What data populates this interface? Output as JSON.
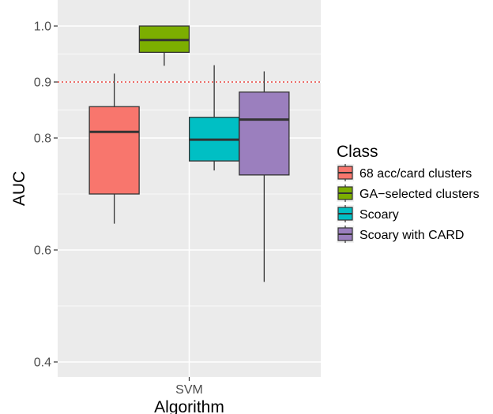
{
  "chart_data": {
    "type": "boxplot",
    "title": "",
    "xlabel": "Algorithm",
    "ylabel": "AUC",
    "categories": [
      "SVM"
    ],
    "ylim": [
      0.38,
      1.04
    ],
    "yticks": [
      0.4,
      0.6,
      0.8,
      0.9,
      1.0
    ],
    "ytick_labels": [
      "0.4",
      "0.6",
      "0.8",
      "0.9",
      "1.0"
    ],
    "minor_gridlines": [
      0.5,
      0.7,
      0.85,
      0.95
    ],
    "grid": true,
    "reference_line": {
      "y": 0.9,
      "style": "dotted",
      "color": "#e8413c"
    },
    "legend": {
      "title": "Class",
      "position": "right"
    },
    "series": [
      {
        "name": "68 acc/card clusters",
        "color": "#f8766d",
        "min": 0.647,
        "q1": 0.7,
        "median": 0.811,
        "q3": 0.856,
        "max": 0.915
      },
      {
        "name": "GA−selected clusters",
        "color": "#7cae00",
        "min": 0.929,
        "q1": 0.953,
        "median": 0.975,
        "q3": 1.0,
        "max": 1.0
      },
      {
        "name": "Scoary",
        "color": "#00bfc4",
        "min": 0.742,
        "q1": 0.759,
        "median": 0.797,
        "q3": 0.837,
        "max": 0.93
      },
      {
        "name": "Scoary with CARD",
        "color": "#9b7fbe",
        "min": 0.543,
        "q1": 0.734,
        "median": 0.833,
        "q3": 0.882,
        "max": 0.919
      }
    ]
  }
}
